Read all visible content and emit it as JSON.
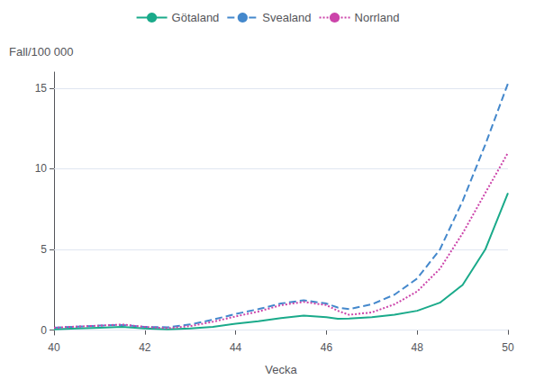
{
  "chart_data": {
    "type": "line",
    "xlabel": "Vecka",
    "ylabel": "Fall/100 000",
    "x": [
      40,
      40.5,
      41,
      41.5,
      42,
      42.5,
      43,
      43.5,
      44,
      44.5,
      45,
      45.5,
      46,
      46.25,
      46.5,
      47,
      47.5,
      48,
      48.5,
      49,
      49.5,
      50
    ],
    "series": [
      {
        "name": "Götaland",
        "color": "#1aaa8a",
        "line_style": "solid",
        "values": [
          0.05,
          0.1,
          0.15,
          0.2,
          0.1,
          0.05,
          0.1,
          0.2,
          0.4,
          0.55,
          0.75,
          0.9,
          0.8,
          0.7,
          0.72,
          0.8,
          0.95,
          1.2,
          1.7,
          2.8,
          5.0,
          8.5
        ]
      },
      {
        "name": "Svealand",
        "color": "#4488cc",
        "line_style": "dashed",
        "values": [
          0.15,
          0.22,
          0.28,
          0.32,
          0.2,
          0.18,
          0.35,
          0.65,
          1.0,
          1.3,
          1.65,
          1.85,
          1.65,
          1.4,
          1.3,
          1.6,
          2.2,
          3.2,
          5.0,
          8.0,
          11.5,
          15.3
        ]
      },
      {
        "name": "Norrland",
        "color": "#cc44aa",
        "line_style": "dotted",
        "values": [
          0.15,
          0.22,
          0.28,
          0.35,
          0.2,
          0.12,
          0.25,
          0.52,
          0.85,
          1.15,
          1.55,
          1.75,
          1.55,
          1.2,
          0.95,
          1.1,
          1.6,
          2.4,
          3.8,
          6.0,
          8.5,
          11.0
        ]
      }
    ],
    "xlim": [
      40,
      50
    ],
    "ylim": [
      -0.3,
      16
    ],
    "xticks": [
      40,
      42,
      44,
      46,
      48,
      50
    ],
    "yticks": [
      0,
      5,
      10,
      15
    ],
    "grid": true,
    "legend": "top"
  }
}
